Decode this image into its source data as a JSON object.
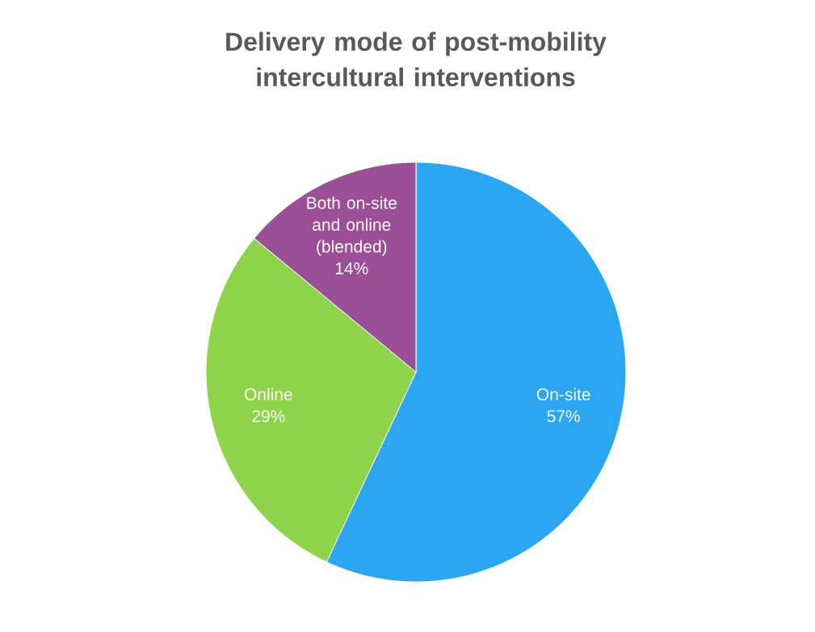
{
  "chart_data": {
    "type": "pie",
    "title": "Delivery mode of post-mobility intercultural interventions",
    "categories": [
      "On-site",
      "Online",
      "Both on-site and online (blended)"
    ],
    "values": [
      57,
      29,
      14
    ],
    "colors": [
      "#2ba6f2",
      "#8dd44a",
      "#9a4f96"
    ],
    "value_labels": [
      "57%",
      "29%",
      "14%"
    ],
    "data_labels": true,
    "legend": false
  }
}
